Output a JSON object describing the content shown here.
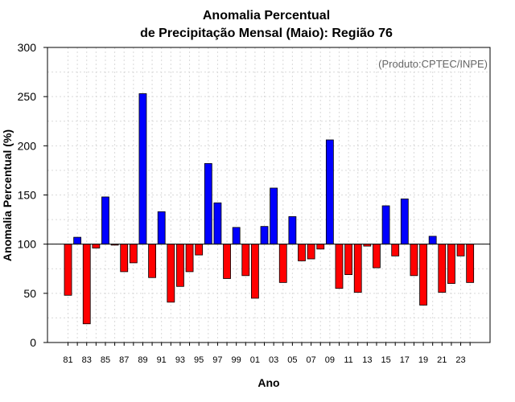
{
  "colors": {
    "positive": "#0000ff",
    "negative": "#ff0000",
    "grid": "#d9d9d9",
    "credit": "#666666"
  },
  "credit": "(Produto:CPTEC/INPE)",
  "chart_data": {
    "type": "bar",
    "title": "Anomalia Percentual",
    "subtitle": "de Precipitação Mensal (Maio): Região 76",
    "xlabel": "Ano",
    "ylabel": "Anomalia Percentual (%)",
    "ylim": [
      0,
      300
    ],
    "yticks": [
      0,
      50,
      100,
      150,
      200,
      250,
      300
    ],
    "baseline": 100,
    "grid": true,
    "categories": [
      "81",
      "82",
      "83",
      "84",
      "85",
      "86",
      "87",
      "88",
      "89",
      "90",
      "91",
      "92",
      "93",
      "94",
      "95",
      "96",
      "97",
      "98",
      "99",
      "00",
      "01",
      "02",
      "03",
      "04",
      "05",
      "06",
      "07",
      "08",
      "09",
      "10",
      "11",
      "12",
      "13",
      "14",
      "15",
      "16",
      "17",
      "18",
      "19",
      "20",
      "21",
      "22",
      "23",
      "24"
    ],
    "xtick_labels": [
      "81",
      "83",
      "85",
      "87",
      "89",
      "91",
      "93",
      "95",
      "97",
      "99",
      "01",
      "03",
      "05",
      "07",
      "09",
      "11",
      "13",
      "15",
      "17",
      "19",
      "21",
      "23"
    ],
    "values": [
      48,
      107,
      19,
      96,
      148,
      99,
      72,
      81,
      253,
      66,
      133,
      41,
      57,
      72,
      89,
      182,
      142,
      65,
      117,
      68,
      45,
      118,
      157,
      61,
      128,
      83,
      85,
      95,
      206,
      55,
      69,
      51,
      98,
      76,
      139,
      88,
      146,
      68,
      38,
      108,
      51,
      60,
      88,
      61
    ]
  }
}
